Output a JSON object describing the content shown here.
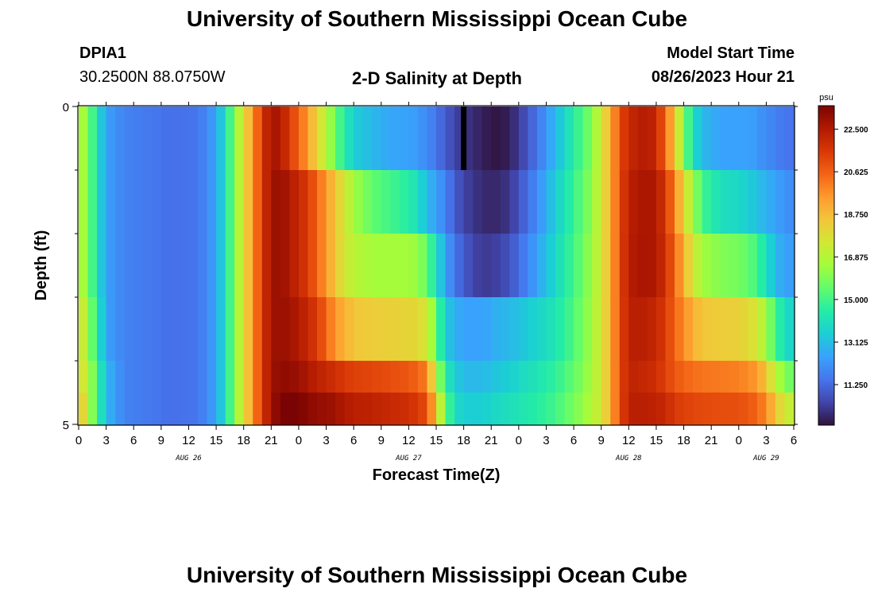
{
  "page": {
    "title_top": "University of Southern Mississippi Ocean Cube",
    "title_bottom": "University of Southern Mississippi Ocean Cube"
  },
  "station": {
    "id": "DPIA1",
    "location": "30.2500N  88.0750W"
  },
  "model": {
    "label": "Model Start Time",
    "start": "08/26/2023 Hour 21"
  },
  "chart_data": {
    "type": "heatmap",
    "title": "2-D Salinity at Depth",
    "xlabel": "Forecast Time(Z)",
    "ylabel": "Depth (ft)",
    "units": "psu",
    "ylim": [
      0,
      5
    ],
    "y_tick_labels": [
      "0",
      "5"
    ],
    "x_tick_labels": [
      "0",
      "3",
      "6",
      "9",
      "12",
      "15",
      "18",
      "21",
      "0",
      "3",
      "6",
      "9",
      "12",
      "15",
      "18",
      "21",
      "0",
      "3",
      "6",
      "9",
      "12",
      "15",
      "18",
      "21",
      "0",
      "3",
      "6"
    ],
    "x_start_hour": 0,
    "x_end_hour": 78,
    "date_labels": [
      {
        "text": "AUG 26",
        "hour": 12
      },
      {
        "text": "AUG 27",
        "hour": 36
      },
      {
        "text": "AUG 28",
        "hour": 60
      },
      {
        "text": "AUG 29",
        "hour": 75
      }
    ],
    "colorbar": {
      "min": 9.5,
      "max": 23.5,
      "ticks": [
        "22.500",
        "20.625",
        "18.750",
        "16.875",
        "15.000",
        "13.125",
        "11.250"
      ],
      "colors": [
        "#30123b",
        "#4145ab",
        "#4675ed",
        "#39a2fc",
        "#1bcfd4",
        "#24eca6",
        "#61fc6c",
        "#a4fc3b",
        "#d1e834",
        "#f3c63a",
        "#fe9b2d",
        "#f36315",
        "#d93806",
        "#b11901",
        "#7a0403"
      ]
    },
    "depth_rows": [
      "0-1 ft",
      "1-2 ft",
      "2-3 ft",
      "3-4 ft",
      "4-4.5 ft",
      "4.5-5 ft"
    ],
    "salinity_keyframes": [
      {
        "hour": 0,
        "rows": [
          17,
          17,
          17,
          18,
          18,
          19
        ]
      },
      {
        "hour": 1,
        "rows": [
          16,
          16,
          16,
          16.5,
          17,
          17
        ]
      },
      {
        "hour": 2,
        "rows": [
          14,
          14,
          14,
          14.5,
          15,
          15
        ]
      },
      {
        "hour": 3,
        "rows": [
          12.5,
          12.5,
          12.5,
          12.5,
          13,
          13
        ]
      },
      {
        "hour": 5,
        "rows": [
          11.8,
          11.8,
          11.8,
          11.8,
          11.8,
          11.8
        ]
      },
      {
        "hour": 10,
        "rows": [
          11.4,
          11.4,
          11.4,
          11.4,
          11.4,
          11.4
        ]
      },
      {
        "hour": 13,
        "rows": [
          11.5,
          11.5,
          11.5,
          11.5,
          11.5,
          11.5
        ]
      },
      {
        "hour": 15,
        "rows": [
          12.5,
          12.5,
          12.5,
          12.5,
          12.5,
          12.5
        ]
      },
      {
        "hour": 16,
        "rows": [
          14,
          14,
          14,
          14,
          14,
          14
        ]
      },
      {
        "hour": 17,
        "rows": [
          16,
          16,
          16,
          16,
          16,
          16
        ]
      },
      {
        "hour": 18,
        "rows": [
          17.8,
          17.8,
          17.8,
          17.8,
          17.8,
          17.8
        ]
      },
      {
        "hour": 19,
        "rows": [
          19.5,
          19.5,
          19.5,
          19.5,
          19.5,
          19.5
        ]
      },
      {
        "hour": 20,
        "rows": [
          21.5,
          21.5,
          21.5,
          21.5,
          21.5,
          21.5
        ]
      },
      {
        "hour": 21,
        "rows": [
          22.8,
          22.8,
          22.8,
          22.8,
          22.8,
          22.8
        ]
      },
      {
        "hour": 22,
        "rows": [
          22.5,
          23,
          23,
          23,
          23.2,
          23.5
        ]
      },
      {
        "hour": 23,
        "rows": [
          21.5,
          22.5,
          22.5,
          22.8,
          23,
          23.5
        ]
      },
      {
        "hour": 24,
        "rows": [
          20.5,
          22,
          22,
          22.5,
          23,
          23.5
        ]
      },
      {
        "hour": 25,
        "rows": [
          19.5,
          21.5,
          21.5,
          22,
          22.5,
          23.2
        ]
      },
      {
        "hour": 26,
        "rows": [
          18,
          20.5,
          20.5,
          21.5,
          22.3,
          23
        ]
      },
      {
        "hour": 27,
        "rows": [
          17,
          19.5,
          19.5,
          20.5,
          22,
          23
        ]
      },
      {
        "hour": 28,
        "rows": [
          15.5,
          18.5,
          18.5,
          19.5,
          21.8,
          22.8
        ]
      },
      {
        "hour": 29,
        "rows": [
          14.5,
          17.5,
          17.5,
          19,
          21.5,
          22.5
        ]
      },
      {
        "hour": 30,
        "rows": [
          13.5,
          16.5,
          17,
          18.5,
          21.3,
          22.3
        ]
      },
      {
        "hour": 32,
        "rows": [
          13,
          15.5,
          16.5,
          18.3,
          21.2,
          22.2
        ]
      },
      {
        "hour": 34,
        "rows": [
          12.6,
          15,
          16.5,
          18.2,
          21,
          22
        ]
      },
      {
        "hour": 36,
        "rows": [
          12.5,
          14.5,
          16.5,
          18.1,
          20.8,
          21.8
        ]
      },
      {
        "hour": 37,
        "rows": [
          12.3,
          14,
          16.3,
          18,
          20.5,
          21.5
        ]
      },
      {
        "hour": 38,
        "rows": [
          12,
          13,
          15.5,
          17.5,
          20,
          21
        ]
      },
      {
        "hour": 39,
        "rows": [
          11.5,
          12.5,
          14,
          15.5,
          17,
          18.5
        ]
      },
      {
        "hour": 40,
        "rows": [
          11,
          11.8,
          12.5,
          13.5,
          14.5,
          15.5
        ]
      },
      {
        "hour": 41,
        "rows": [
          10.5,
          11,
          11.5,
          12.8,
          13.5,
          14
        ]
      },
      {
        "hour": 42,
        "rows": [
          10.2,
          10.5,
          11,
          12.5,
          13,
          13.5
        ]
      },
      {
        "hour": 43,
        "rows": [
          10,
          10.2,
          10.5,
          12.5,
          13,
          13.5
        ]
      },
      {
        "hour": 44,
        "rows": [
          9.8,
          10,
          10.3,
          12.5,
          13,
          13.5
        ]
      },
      {
        "hour": 45,
        "rows": [
          9.6,
          9.9,
          10.3,
          12.7,
          13.2,
          13.7
        ]
      },
      {
        "hour": 46,
        "rows": [
          9.6,
          10,
          10.5,
          12.9,
          13.4,
          13.9
        ]
      },
      {
        "hour": 47,
        "rows": [
          9.8,
          10.2,
          10.8,
          13,
          13.5,
          14
        ]
      },
      {
        "hour": 48,
        "rows": [
          10.3,
          10.8,
          11.3,
          13.2,
          13.8,
          14.2
        ]
      },
      {
        "hour": 50,
        "rows": [
          11.5,
          12,
          12.5,
          13.7,
          14.2,
          14.5
        ]
      },
      {
        "hour": 52,
        "rows": [
          13,
          13.5,
          13.8,
          14.2,
          14.7,
          15
        ]
      },
      {
        "hour": 54,
        "rows": [
          14.5,
          14.8,
          15,
          15.2,
          15.5,
          15.8
        ]
      },
      {
        "hour": 56,
        "rows": [
          16,
          16.2,
          16.4,
          16.5,
          16.6,
          16.8
        ]
      },
      {
        "hour": 57,
        "rows": [
          17.5,
          17.5,
          17.5,
          17.5,
          17.5,
          17.5
        ]
      },
      {
        "hour": 58,
        "rows": [
          19,
          19,
          19,
          19,
          19,
          19
        ]
      },
      {
        "hour": 59,
        "rows": [
          21,
          21,
          21,
          21,
          21,
          21
        ]
      },
      {
        "hour": 60,
        "rows": [
          22,
          22.3,
          22.4,
          22.3,
          22.2,
          22.3
        ]
      },
      {
        "hour": 62,
        "rows": [
          22.5,
          22.7,
          22.7,
          22.3,
          22,
          22.3
        ]
      },
      {
        "hour": 63,
        "rows": [
          22,
          22.5,
          22.5,
          22,
          21.8,
          22.2
        ]
      },
      {
        "hour": 64,
        "rows": [
          20.5,
          21.5,
          21.8,
          21.5,
          21.3,
          22
        ]
      },
      {
        "hour": 65,
        "rows": [
          18.5,
          20,
          20.5,
          20.5,
          20.8,
          21.5
        ]
      },
      {
        "hour": 66,
        "rows": [
          16,
          18,
          19,
          19.8,
          20.5,
          21.3
        ]
      },
      {
        "hour": 67,
        "rows": [
          14,
          16.5,
          17.5,
          19,
          20.3,
          21.2
        ]
      },
      {
        "hour": 68,
        "rows": [
          13,
          15,
          16.5,
          18.5,
          20.2,
          21.1
        ]
      },
      {
        "hour": 70,
        "rows": [
          12.5,
          14,
          16,
          18.3,
          20.1,
          21
        ]
      },
      {
        "hour": 72,
        "rows": [
          12.5,
          13.8,
          15.8,
          18.2,
          20,
          21
        ]
      },
      {
        "hour": 73,
        "rows": [
          12.5,
          13.5,
          15.5,
          18,
          19.8,
          20.8
        ]
      },
      {
        "hour": 74,
        "rows": [
          12.3,
          13.2,
          15,
          17.5,
          19.5,
          20.5
        ]
      },
      {
        "hour": 75,
        "rows": [
          12,
          12.8,
          14,
          16.5,
          18.5,
          19.8
        ]
      },
      {
        "hour": 76,
        "rows": [
          11.8,
          12.5,
          13,
          15,
          17,
          18.5
        ]
      },
      {
        "hour": 77,
        "rows": [
          11.5,
          12.2,
          12.5,
          14,
          16,
          17.5
        ]
      },
      {
        "hour": 78,
        "rows": [
          11.5,
          12,
          12.3,
          13.5,
          15.5,
          17
        ]
      }
    ],
    "highlight": {
      "hour": 42,
      "depth_row": 0,
      "color": "#000000"
    }
  }
}
